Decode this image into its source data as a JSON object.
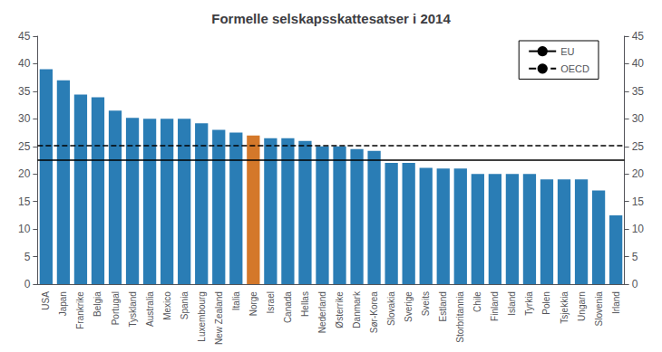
{
  "chart_data": {
    "type": "bar",
    "title": "Formelle selskapsskattesatser i 2014",
    "categories": [
      "USA",
      "Japan",
      "Frankrike",
      "Belgia",
      "Portugal",
      "Tyskland",
      "Australia",
      "Mexico",
      "Spania",
      "Luxembourg",
      "New Zealand",
      "Italia",
      "Norge",
      "Israel",
      "Canada",
      "Hellas",
      "Nederland",
      "Østerrike",
      "Danmark",
      "Sør-Korea",
      "Slovakia",
      "Sverige",
      "Sveits",
      "Estland",
      "Storbritannia",
      "Chile",
      "Finland",
      "Island",
      "Tyrkia",
      "Polen",
      "Tsjekkia",
      "Ungarn",
      "Slovenia",
      "Irland"
    ],
    "values": [
      39.0,
      37.0,
      34.4,
      33.9,
      31.5,
      30.2,
      30.0,
      30.0,
      30.0,
      29.2,
      28.0,
      27.5,
      27.0,
      26.5,
      26.5,
      26.0,
      25.0,
      25.0,
      24.5,
      24.2,
      22.0,
      22.0,
      21.1,
      21.0,
      21.0,
      20.0,
      20.0,
      20.0,
      20.0,
      19.0,
      19.0,
      19.0,
      17.0,
      12.5
    ],
    "colors": [
      "#2a7db5",
      "#2a7db5",
      "#2a7db5",
      "#2a7db5",
      "#2a7db5",
      "#2a7db5",
      "#2a7db5",
      "#2a7db5",
      "#2a7db5",
      "#2a7db5",
      "#2a7db5",
      "#2a7db5",
      "#d4782a",
      "#2a7db5",
      "#2a7db5",
      "#2a7db5",
      "#2a7db5",
      "#2a7db5",
      "#2a7db5",
      "#2a7db5",
      "#2a7db5",
      "#2a7db5",
      "#2a7db5",
      "#2a7db5",
      "#2a7db5",
      "#2a7db5",
      "#2a7db5",
      "#2a7db5",
      "#2a7db5",
      "#2a7db5",
      "#2a7db5",
      "#2a7db5",
      "#2a7db5",
      "#2a7db5"
    ],
    "lines": [
      {
        "name": "EU",
        "value": 22.5,
        "line_style": "solid",
        "color": "#000000"
      },
      {
        "name": "OECD",
        "value": 25.1,
        "line_style": "dashed",
        "color": "#000000"
      }
    ],
    "ylim": [
      0,
      45
    ],
    "yticks": [
      0,
      5,
      10,
      15,
      20,
      25,
      30,
      35,
      40,
      45
    ],
    "y2lim": [
      0,
      45
    ],
    "y2ticks": [
      0,
      5,
      10,
      15,
      20,
      25,
      30,
      35,
      40,
      45
    ],
    "grid": false,
    "legend": "upper right"
  }
}
